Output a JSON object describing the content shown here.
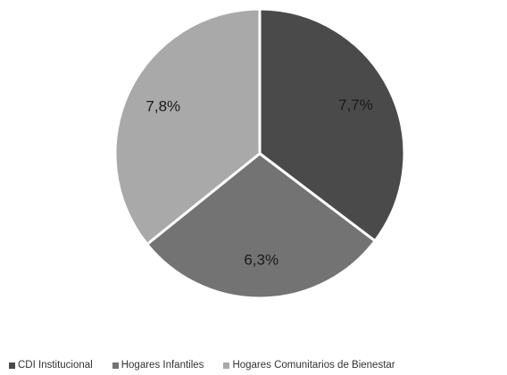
{
  "chart_data": {
    "type": "pie",
    "title": "",
    "categories": [
      "CDI Institucional",
      "Hogares Infantiles",
      "Hogares Comunitarios de Bienestar"
    ],
    "values": [
      7.7,
      6.3,
      7.8
    ],
    "labels": [
      "7,7%",
      "6,3%",
      "7,8%"
    ],
    "colors": [
      "#4a4a4a",
      "#737373",
      "#a9a9a9"
    ],
    "start_direction": "top",
    "direction": "clockwise",
    "legend": "bottom",
    "slice_border_color": "#ffffff"
  }
}
